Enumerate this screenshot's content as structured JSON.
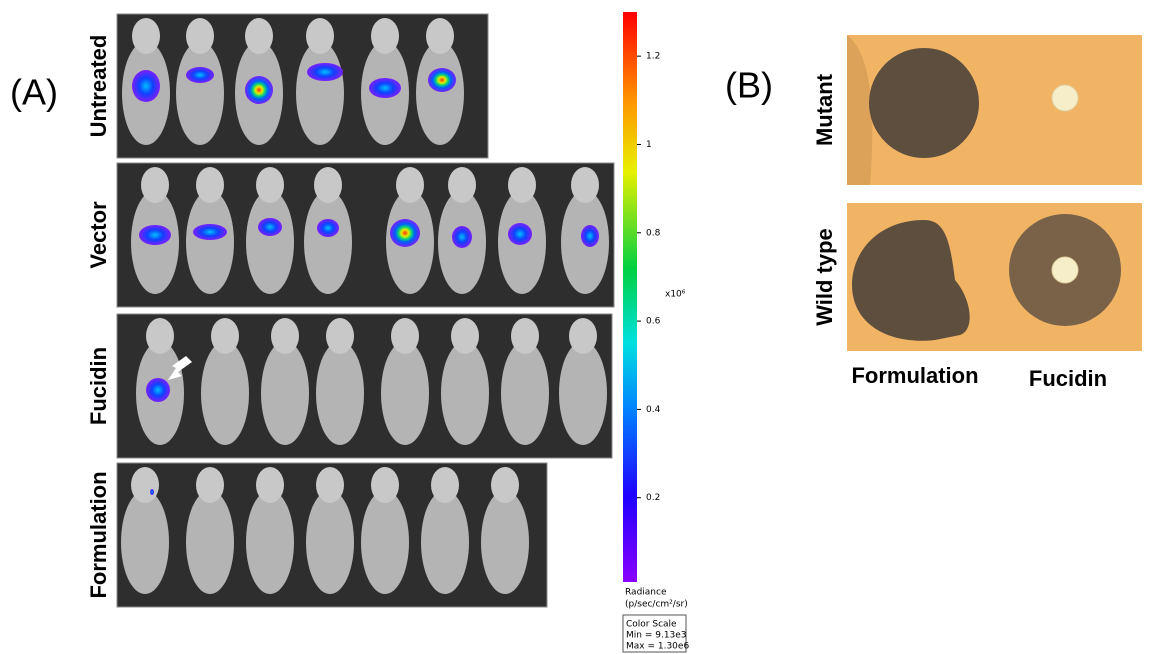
{
  "panel_a": {
    "label": "(A)",
    "rows": [
      "Untreated",
      "Vector",
      "Fucidin",
      "Formulation"
    ],
    "colorbar": {
      "lim": [
        0.00913,
        1.3
      ],
      "ticks": [
        0.2,
        0.4,
        0.6,
        0.8,
        1.0,
        1.2
      ],
      "multiplier": "x10⁶",
      "title": [
        "Radiance",
        "(p/sec/cm²/sr)"
      ],
      "scale_box": [
        "Color Scale",
        "Min = 9.13e3",
        "Max = 1.30e6"
      ]
    }
  },
  "panel_b": {
    "label": "(B)",
    "rows": [
      "Mutant",
      "Wild type"
    ],
    "columns": [
      "Formulation",
      "Fucidin"
    ]
  }
}
